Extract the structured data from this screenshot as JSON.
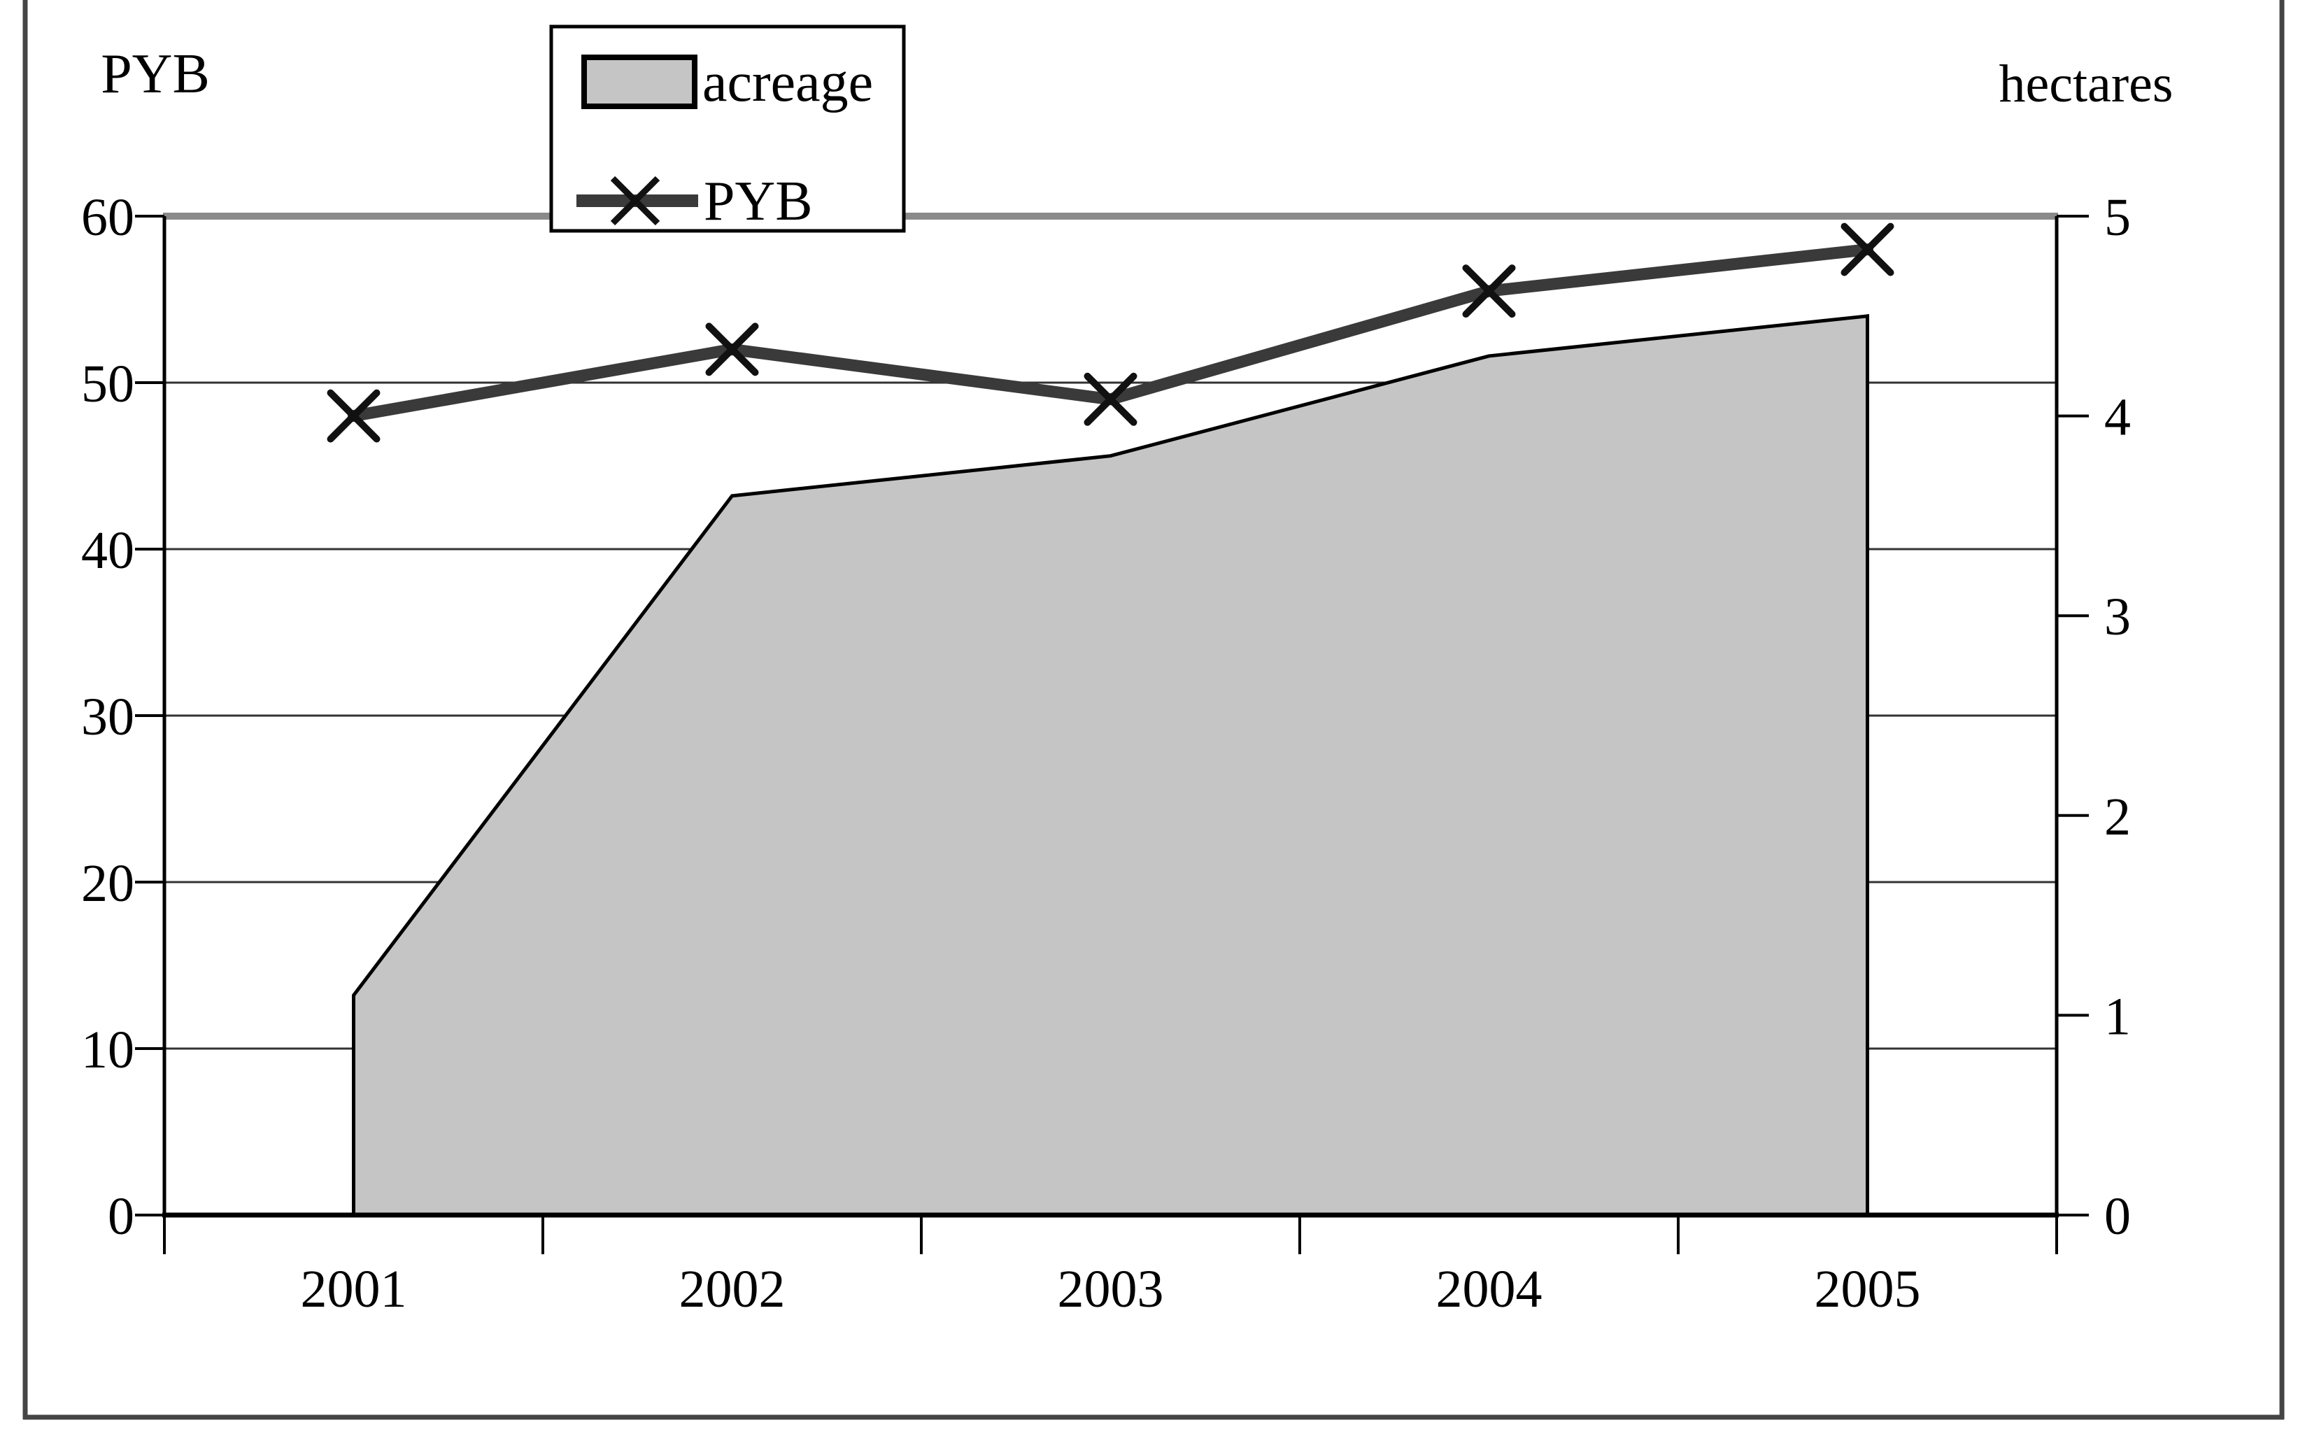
{
  "figure": {
    "left_axis_title": "PYB",
    "right_axis_title": "hectares",
    "legend": [
      {
        "label": "acreage",
        "type": "area-swatch"
      },
      {
        "label": "PYB",
        "type": "line-x-marker"
      }
    ]
  },
  "chart_data": {
    "type": "combo",
    "categories": [
      "2001",
      "2002",
      "2003",
      "2004",
      "2005"
    ],
    "series": [
      {
        "name": "acreage",
        "type": "area",
        "axis": "right",
        "unit": "hectares",
        "values": [
          1.1,
          3.6,
          3.8,
          4.3,
          4.5
        ]
      },
      {
        "name": "PYB",
        "type": "line",
        "axis": "left",
        "marker": "x",
        "values": [
          48,
          52,
          49,
          55.5,
          58
        ]
      }
    ],
    "left_axis": {
      "title": "PYB",
      "min": 0,
      "max": 60,
      "tick_step": 10,
      "ticks": [
        0,
        10,
        20,
        30,
        40,
        50,
        60
      ]
    },
    "right_axis": {
      "title": "hectares",
      "min": 0,
      "max": 5,
      "tick_step": 1,
      "ticks": [
        0,
        1,
        2,
        3,
        4,
        5
      ]
    },
    "grid": "horizontal",
    "legend_position": "top-center",
    "colors": {
      "area_fill": "#c5c5c5",
      "area_edge": "#000000",
      "line": "#3a3a3a",
      "marker": "#111111",
      "grid": "#333333",
      "top_border": "#8a8a8a",
      "axis": "#000000",
      "outer_border": "#454545",
      "background": "#ffffff"
    }
  }
}
